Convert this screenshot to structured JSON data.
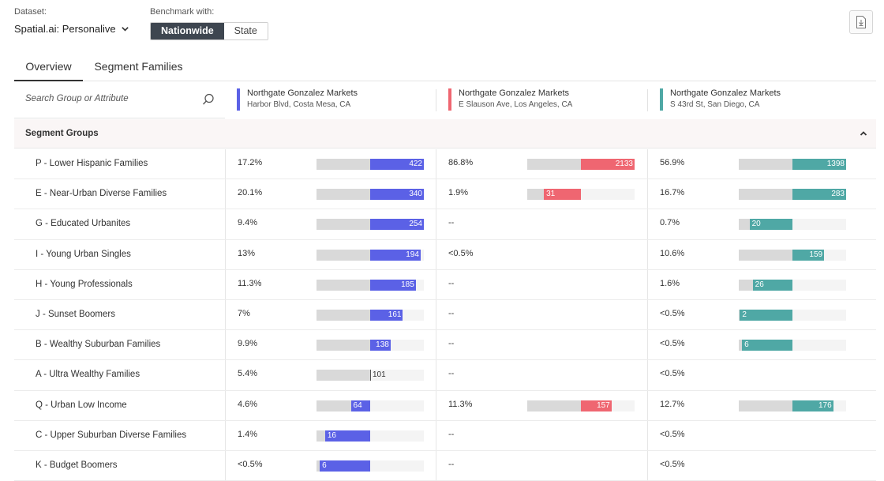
{
  "header": {
    "dataset_label": "Dataset:",
    "dataset_value": "Spatial.ai: Personalive",
    "benchmark_label": "Benchmark with:",
    "benchmark_options": [
      "Nationwide",
      "State"
    ],
    "benchmark_selected": "Nationwide",
    "download_icon": "download-file-icon"
  },
  "tabs": [
    {
      "label": "Overview",
      "active": true
    },
    {
      "label": "Segment Families",
      "active": false
    }
  ],
  "search": {
    "placeholder": "Search Group or Attribute"
  },
  "locations": [
    {
      "name": "Northgate Gonzalez Markets",
      "address": "Harbor Blvd, Costa Mesa, CA",
      "color": "#5b61e6"
    },
    {
      "name": "Northgate Gonzalez Markets",
      "address": "E Slauson Ave, Los Angeles, CA",
      "color": "#ef6671"
    },
    {
      "name": "Northgate Gonzalez Markets",
      "address": "S 43rd St, San Diego, CA",
      "color": "#4fa8a5"
    }
  ],
  "section": {
    "title": "Segment Groups",
    "expanded": true
  },
  "rows": [
    {
      "name": "P - Lower Hispanic Families",
      "values": [
        {
          "pct": "17.2%",
          "index": "422"
        },
        {
          "pct": "86.8%",
          "index": "2133"
        },
        {
          "pct": "56.9%",
          "index": "1398"
        }
      ]
    },
    {
      "name": "E - Near-Urban Diverse Families",
      "values": [
        {
          "pct": "20.1%",
          "index": "340"
        },
        {
          "pct": "1.9%",
          "index": "31"
        },
        {
          "pct": "16.7%",
          "index": "283"
        }
      ]
    },
    {
      "name": "G - Educated Urbanites",
      "values": [
        {
          "pct": "9.4%",
          "index": "254"
        },
        {
          "pct": "--",
          "index": null
        },
        {
          "pct": "0.7%",
          "index": "20"
        }
      ]
    },
    {
      "name": "I - Young Urban Singles",
      "values": [
        {
          "pct": "13%",
          "index": "194"
        },
        {
          "pct": "<0.5%",
          "index": null
        },
        {
          "pct": "10.6%",
          "index": "159"
        }
      ]
    },
    {
      "name": "H - Young Professionals",
      "values": [
        {
          "pct": "11.3%",
          "index": "185"
        },
        {
          "pct": "--",
          "index": null
        },
        {
          "pct": "1.6%",
          "index": "26"
        }
      ]
    },
    {
      "name": "J - Sunset Boomers",
      "values": [
        {
          "pct": "7%",
          "index": "161"
        },
        {
          "pct": "--",
          "index": null
        },
        {
          "pct": "<0.5%",
          "index": "2"
        }
      ]
    },
    {
      "name": "B - Wealthy Suburban Families",
      "values": [
        {
          "pct": "9.9%",
          "index": "138"
        },
        {
          "pct": "--",
          "index": null
        },
        {
          "pct": "<0.5%",
          "index": "6"
        }
      ]
    },
    {
      "name": "A - Ultra Wealthy Families",
      "values": [
        {
          "pct": "5.4%",
          "index": "101"
        },
        {
          "pct": "--",
          "index": null
        },
        {
          "pct": "<0.5%",
          "index": null
        }
      ]
    },
    {
      "name": "Q - Urban Low Income",
      "values": [
        {
          "pct": "4.6%",
          "index": "64"
        },
        {
          "pct": "11.3%",
          "index": "157"
        },
        {
          "pct": "12.7%",
          "index": "176"
        }
      ]
    },
    {
      "name": "C - Upper Suburban Diverse Families",
      "values": [
        {
          "pct": "1.4%",
          "index": "16"
        },
        {
          "pct": "--",
          "index": null
        },
        {
          "pct": "<0.5%",
          "index": null
        }
      ]
    },
    {
      "name": "K - Budget Boomers",
      "values": [
        {
          "pct": "<0.5%",
          "index": "6"
        },
        {
          "pct": "--",
          "index": null
        },
        {
          "pct": "<0.5%",
          "index": null
        }
      ]
    }
  ]
}
